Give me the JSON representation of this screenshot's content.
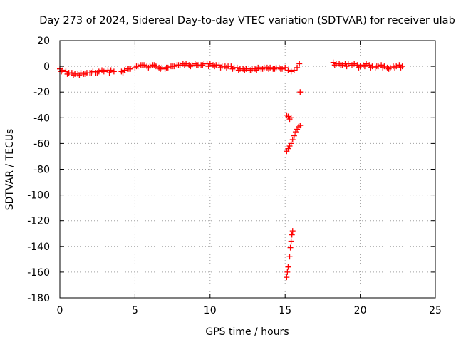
{
  "chart_data": {
    "type": "scatter",
    "title": "Day 273 of 2024, Sidereal Day-to-day VTEC variation (SDTVAR) for receiver ulab",
    "xlabel": "GPS time / hours",
    "ylabel": "SDTVAR / TECUs",
    "xlim": [
      0,
      25
    ],
    "ylim": [
      -180,
      20
    ],
    "xticks": [
      0,
      5,
      10,
      15,
      20,
      25
    ],
    "yticks": [
      20,
      0,
      -20,
      -40,
      -60,
      -80,
      -100,
      -120,
      -140,
      -160,
      -180
    ],
    "grid": true,
    "marker": "+",
    "color": "#ff0000",
    "series": [
      {
        "name": "SDTVAR",
        "x": [
          0.0,
          0.2,
          0.4,
          0.6,
          0.8,
          1.0,
          1.2,
          1.4,
          1.6,
          1.8,
          2.0,
          2.2,
          2.4,
          2.6,
          2.8,
          3.0,
          3.2,
          3.4,
          3.6,
          4.1,
          4.3,
          4.5,
          4.7,
          5.0,
          5.2,
          5.4,
          5.6,
          5.8,
          6.0,
          6.2,
          6.4,
          6.6,
          6.8,
          7.0,
          7.2,
          7.4,
          7.6,
          7.8,
          8.0,
          8.2,
          8.4,
          8.6,
          8.8,
          9.0,
          9.2,
          9.4,
          9.6,
          9.8,
          10.0,
          10.2,
          10.4,
          10.6,
          10.8,
          11.0,
          11.2,
          11.4,
          11.6,
          11.8,
          12.0,
          12.2,
          12.4,
          12.6,
          12.8,
          13.0,
          13.2,
          13.4,
          13.6,
          13.8,
          14.0,
          14.2,
          14.4,
          14.6,
          14.8,
          15.0,
          15.2,
          15.4,
          15.6,
          15.8,
          15.95,
          15.1,
          15.2,
          15.3,
          15.4,
          15.1,
          15.2,
          15.3,
          15.4,
          15.5,
          15.6,
          15.7,
          15.8,
          15.9,
          16.0,
          16.0,
          15.1,
          15.15,
          15.2,
          15.3,
          15.35,
          15.4,
          15.45,
          15.5,
          18.2,
          18.4,
          18.6,
          18.8,
          19.0,
          19.2,
          19.4,
          19.6,
          19.8,
          20.0,
          20.2,
          20.4,
          20.6,
          20.8,
          21.0,
          21.2,
          21.4,
          21.6,
          21.8,
          22.0,
          22.2,
          22.4,
          22.6,
          22.8,
          0.1,
          0.5,
          0.9,
          1.3,
          1.7,
          2.1,
          2.5,
          2.9,
          3.3,
          4.2,
          4.6,
          5.1,
          5.5,
          5.9,
          6.3,
          6.7,
          7.1,
          7.5,
          7.9,
          8.3,
          8.7,
          9.1,
          9.5,
          9.9,
          10.3,
          10.7,
          11.1,
          11.5,
          11.9,
          12.3,
          12.7,
          13.1,
          13.5,
          13.9,
          14.3,
          14.7,
          18.3,
          18.7,
          19.1,
          19.5,
          19.9,
          20.3,
          20.7,
          21.1,
          21.5,
          21.9,
          22.3,
          22.7
        ],
        "y": [
          -2,
          -3,
          -4,
          -5,
          -5,
          -6,
          -6,
          -5,
          -6,
          -5,
          -5,
          -4,
          -5,
          -4,
          -3,
          -4,
          -3,
          -3,
          -4,
          -4,
          -3,
          -2,
          -2,
          -1,
          0,
          1,
          1,
          0,
          0,
          1,
          0,
          -1,
          -1,
          -2,
          -1,
          0,
          0,
          1,
          1,
          2,
          2,
          1,
          1,
          2,
          1,
          1,
          2,
          2,
          2,
          1,
          1,
          1,
          0,
          0,
          0,
          0,
          -1,
          -1,
          -2,
          -2,
          -2,
          -3,
          -2,
          -2,
          -1,
          -2,
          -1,
          -1,
          -1,
          -2,
          -1,
          -1,
          -2,
          -1,
          -3,
          -4,
          -3,
          -1,
          2,
          -38,
          -39,
          -41,
          -40,
          -66,
          -64,
          -62,
          -60,
          -57,
          -54,
          -51,
          -49,
          -47,
          -46,
          -20,
          -164,
          -160,
          -156,
          -148,
          -141,
          -136,
          -131,
          -128,
          3,
          2,
          2,
          1,
          2,
          2,
          1,
          2,
          1,
          0,
          1,
          2,
          1,
          0,
          -1,
          0,
          1,
          0,
          -1,
          -1,
          0,
          0,
          1,
          0,
          -4,
          -6,
          -7,
          -7,
          -6,
          -5,
          -5,
          -4,
          -5,
          -5,
          -2,
          0,
          1,
          -1,
          1,
          -2,
          -1,
          0,
          1,
          1,
          0,
          1,
          1,
          0,
          0,
          -1,
          -1,
          -2,
          -3,
          -3,
          -3,
          -3,
          -2,
          -2,
          -2,
          -2,
          1,
          1,
          0,
          1,
          -1,
          0,
          -1,
          0,
          -1,
          -2,
          -1,
          -1
        ]
      }
    ]
  }
}
